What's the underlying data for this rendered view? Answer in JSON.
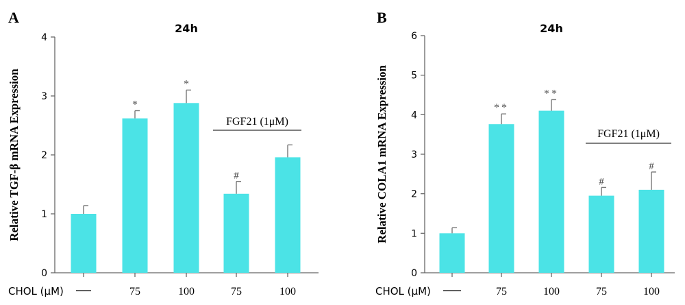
{
  "chart_data": [
    {
      "panel": "A",
      "type": "bar",
      "title": "24h",
      "ylabel": "Relative TGF-β mRNA Expression",
      "xlabel": "CHOL (μM)",
      "categories": [
        "—",
        "75",
        "100",
        "75",
        "100"
      ],
      "values": [
        1.0,
        2.62,
        2.88,
        1.34,
        1.96
      ],
      "errors": [
        0.14,
        0.13,
        0.22,
        0.21,
        0.21
      ],
      "annotations": [
        "",
        "*",
        "*",
        "#",
        ""
      ],
      "ylim": [
        0,
        4
      ],
      "yticks": [
        "0",
        "1",
        "2",
        "3",
        "4"
      ],
      "bracket": {
        "label": "FGF21 (1μM)",
        "from": 3,
        "to": 4
      },
      "bar_color": "#4be3e6"
    },
    {
      "panel": "B",
      "type": "bar",
      "title": "24h",
      "ylabel": "Relative COLA1 mRNA Expression",
      "xlabel": "CHOL (μM)",
      "categories": [
        "—",
        "75",
        "100",
        "75",
        "100"
      ],
      "values": [
        1.0,
        3.76,
        4.1,
        1.95,
        2.1
      ],
      "errors": [
        0.14,
        0.26,
        0.28,
        0.21,
        0.45
      ],
      "annotations": [
        "",
        "**",
        "**",
        "#",
        "#"
      ],
      "ylim": [
        0,
        6
      ],
      "yticks": [
        "0",
        "1",
        "2",
        "3",
        "4",
        "5",
        "6"
      ],
      "bracket": {
        "label": "FGF21 (1μM)",
        "from": 3,
        "to": 4
      },
      "bar_color": "#4be3e6"
    }
  ]
}
